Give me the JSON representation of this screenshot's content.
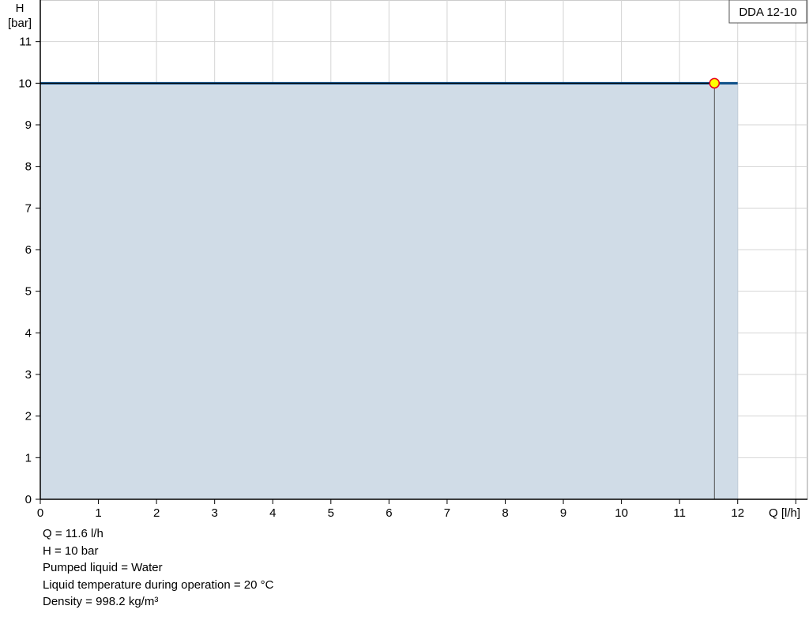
{
  "chart_data": {
    "type": "area",
    "legend": "DDA 12-10",
    "xlabel": "Q [l/h]",
    "ylabel_line1": "H",
    "ylabel_line2": "[bar]",
    "xlim": [
      0,
      13.2
    ],
    "ylim": [
      0,
      12
    ],
    "x_ticks": [
      0,
      1,
      2,
      3,
      4,
      5,
      6,
      7,
      8,
      9,
      10,
      11,
      12
    ],
    "y_ticks": [
      0,
      1,
      2,
      3,
      4,
      5,
      6,
      7,
      8,
      9,
      10,
      11
    ],
    "grid": true,
    "series": [
      {
        "x": [
          0,
          12
        ],
        "y": [
          10,
          10
        ],
        "color": "#0b4d87",
        "fill": "#d0dce7"
      }
    ],
    "operating_point": {
      "x": 11.6,
      "y": 10,
      "color": "#ffff00",
      "border": "#e8001c"
    }
  },
  "info": [
    "Q = 11.6 l/h",
    "H = 10 bar",
    "Pumped liquid = Water",
    "Liquid temperature during operation = 20 °C",
    "Density = 998.2 kg/m³"
  ]
}
